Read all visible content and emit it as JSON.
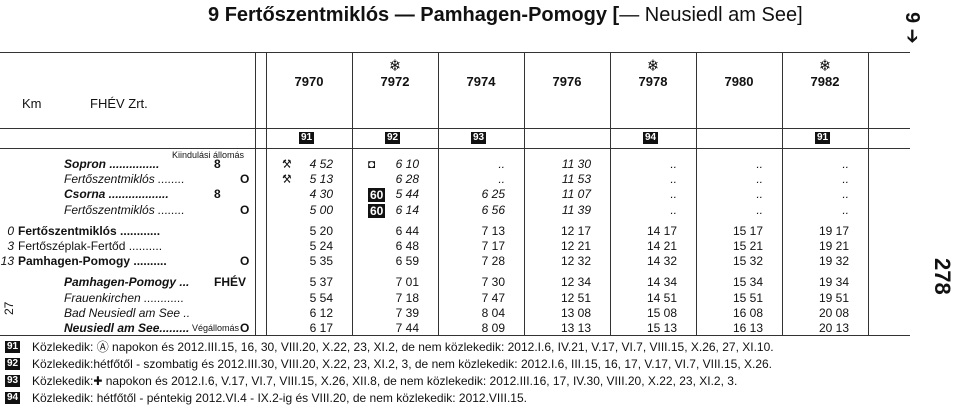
{
  "header": {
    "number": "9",
    "title": "Fertőszentmiklós — Pamhagen-Pomogy [",
    "title_light": "— Neusiedl am See]",
    "side_mark": "9 ➔",
    "page_right": "278",
    "page_left": "27",
    "km_label": "Km",
    "operator": "FHÉV Zrt.",
    "start_label": "Kiindulási állomás",
    "end_label": "Végállomás"
  },
  "columns": [
    {
      "train": "7970",
      "symbol": null,
      "note": "91"
    },
    {
      "train": "7972",
      "symbol": "❄",
      "note": "92"
    },
    {
      "train": "7974",
      "symbol": null,
      "note": "93"
    },
    {
      "train": "7976",
      "symbol": null,
      "note": null
    },
    {
      "train": "7978",
      "symbol": "❄",
      "note": "94"
    },
    {
      "train": "7980",
      "symbol": null,
      "note": null
    },
    {
      "train": "7982",
      "symbol": "❄",
      "note": "91"
    }
  ],
  "rows": [
    {
      "km": null,
      "station": "Sopron ...............",
      "ref": "8",
      "marks": [
        "⚒",
        "◘",
        null,
        null,
        null,
        null,
        null
      ],
      "times": [
        "4 52",
        "6 10",
        "..",
        "11 30",
        "..",
        "..",
        ".."
      ]
    },
    {
      "km": null,
      "station": "Fertőszentmiklós ........",
      "ref": "O",
      "marks": [
        "⚒",
        null,
        null,
        null,
        null,
        null,
        null
      ],
      "times": [
        "5 13",
        "6 28",
        "..",
        "11 53",
        "..",
        "..",
        ".."
      ]
    },
    {
      "km": null,
      "station": "Csorna ..................",
      "ref": "8",
      "marks": [
        null,
        "60",
        null,
        null,
        null,
        null,
        null
      ],
      "times": [
        "4 30",
        "5 44",
        "6 25",
        "11 07",
        "..",
        "..",
        ".."
      ]
    },
    {
      "km": null,
      "station": "Fertőszentmiklós ........",
      "ref": "O",
      "marks": [
        null,
        "60",
        null,
        null,
        null,
        null,
        null
      ],
      "times": [
        "5 00",
        "6 14",
        "6 56",
        "11 39",
        "..",
        "..",
        ".."
      ]
    },
    {
      "km": "0",
      "station": "Fertőszentmiklós ............",
      "ref": null,
      "marks": null,
      "times": [
        "5 20",
        "6 44",
        "7 13",
        "12 17",
        "14 17",
        "15 17",
        "19 17"
      ]
    },
    {
      "km": "3",
      "station": "Fertőszéplak-Fertőd ..........",
      "ref": null,
      "marks": null,
      "times": [
        "5 24",
        "6 48",
        "7 17",
        "12 21",
        "14 21",
        "15 21",
        "19 21"
      ]
    },
    {
      "km": "13",
      "station": "Pamhagen-Pomogy ..........",
      "ref": "O",
      "marks": null,
      "times": [
        "5 35",
        "6 59",
        "7 28",
        "12 32",
        "14 32",
        "15 32",
        "19 32"
      ]
    },
    {
      "km": null,
      "station": "Pamhagen-Pomogy ...",
      "ref": "FHÉV",
      "marks": null,
      "times": [
        "5 37",
        "7 01",
        "7 30",
        "12 34",
        "14 34",
        "15 34",
        "19 34"
      ]
    },
    {
      "km": null,
      "station": "Frauenkirchen ............",
      "ref": null,
      "marks": null,
      "times": [
        "5 54",
        "7 18",
        "7 47",
        "12 51",
        "14 51",
        "15 51",
        "19 51"
      ]
    },
    {
      "km": null,
      "station": "Bad Neusiedl am See ..",
      "ref": null,
      "marks": null,
      "times": [
        "6 12",
        "7 39",
        "8 04",
        "13 08",
        "15 08",
        "16 08",
        "20 08"
      ]
    },
    {
      "km": null,
      "station": "Neusiedl am See.........",
      "ref": "O",
      "marks": null,
      "times": [
        "6 17",
        "7 44",
        "8 09",
        "13 13",
        "15 13",
        "16 13",
        "20 13"
      ]
    }
  ],
  "notes": [
    {
      "mark": "91",
      "text": "Közlekedik: Ⓐ napokon és 2012.III.15, 16, 30, VIII.20, X.22, 23, XI.2, de nem közlekedik: 2012.I.6, IV.21, V.17, VI.7, VIII.15, X.26, 27, XI.10."
    },
    {
      "mark": "92",
      "text": "Közlekedik:hétfőtől - szombatig és 2012.III.30, VIII.20, X.22, 23, XI.2, 3, de nem közlekedik: 2012.I.6, III.15, 16, 17, V.17, VI.7, VIII.15, X.26."
    },
    {
      "mark": "93",
      "text": "Közlekedik:✚ napokon és 2012.I.6, V.17, VI.7, VIII.15, X.26, XII.8, de nem közlekedik: 2012.III.16, 17, IV.30, VIII.20, X.22, 23, XI.2, 3."
    },
    {
      "mark": "94",
      "text": "Közlekedik: hétfőtől - péntekig 2012.VI.4 - IX.2-ig és VIII.20, de nem közlekedik: 2012.VIII.15."
    }
  ]
}
